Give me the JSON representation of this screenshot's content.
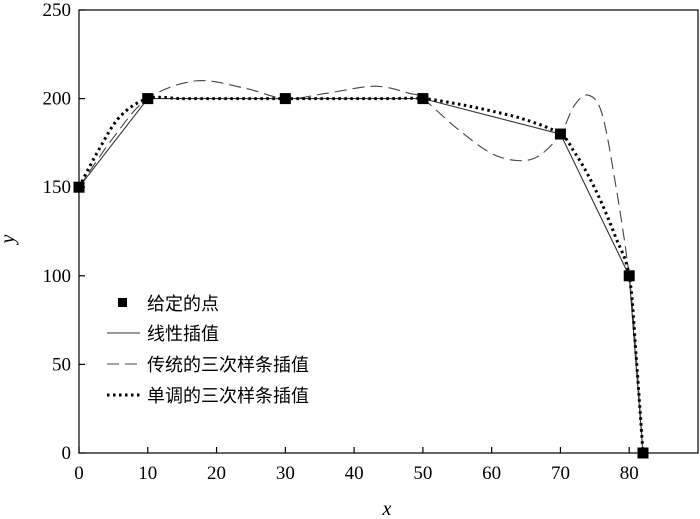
{
  "chart_data": {
    "type": "line",
    "xlabel": "x",
    "ylabel": "y",
    "xlim": [
      0,
      90
    ],
    "ylim": [
      0,
      250
    ],
    "x_ticks": [
      0,
      10,
      20,
      30,
      40,
      50,
      60,
      70,
      80
    ],
    "y_ticks": [
      0,
      50,
      100,
      150,
      200,
      250
    ],
    "grid": false,
    "legend_position": "left-middle",
    "given_points": {
      "name": "给定的点",
      "x": [
        0,
        10,
        30,
        50,
        70,
        80,
        82
      ],
      "y": [
        150,
        200,
        200,
        200,
        180,
        100,
        0
      ]
    },
    "series": [
      {
        "name": "线性插值",
        "style": "solid",
        "x": [
          0,
          10,
          30,
          50,
          70,
          80,
          82
        ],
        "y": [
          150,
          200,
          200,
          200,
          180,
          100,
          0
        ]
      },
      {
        "name": "传统的三次样条插值",
        "style": "dashed",
        "x": [
          0,
          5,
          10,
          17,
          24,
          30,
          36,
          43,
          48,
          50,
          55,
          60,
          64,
          67,
          70,
          72,
          74,
          76,
          78,
          80,
          81,
          82
        ],
        "y": [
          150,
          178,
          200,
          210,
          206,
          200,
          203,
          207,
          203,
          200,
          183,
          169,
          165,
          168,
          180,
          196,
          202,
          192,
          152,
          100,
          55,
          0
        ]
      },
      {
        "name": "单调的三次样条插值",
        "style": "dotted",
        "x": [
          0,
          3,
          6,
          10,
          15,
          20,
          25,
          30,
          35,
          40,
          45,
          50,
          55,
          60,
          65,
          70,
          72,
          74,
          76,
          78,
          80,
          81,
          82
        ],
        "y": [
          150,
          172,
          190,
          200,
          200,
          200,
          200,
          200,
          200,
          200,
          200,
          200,
          197,
          193,
          188,
          180,
          170,
          157,
          141,
          122,
          100,
          55,
          0
        ]
      }
    ]
  }
}
